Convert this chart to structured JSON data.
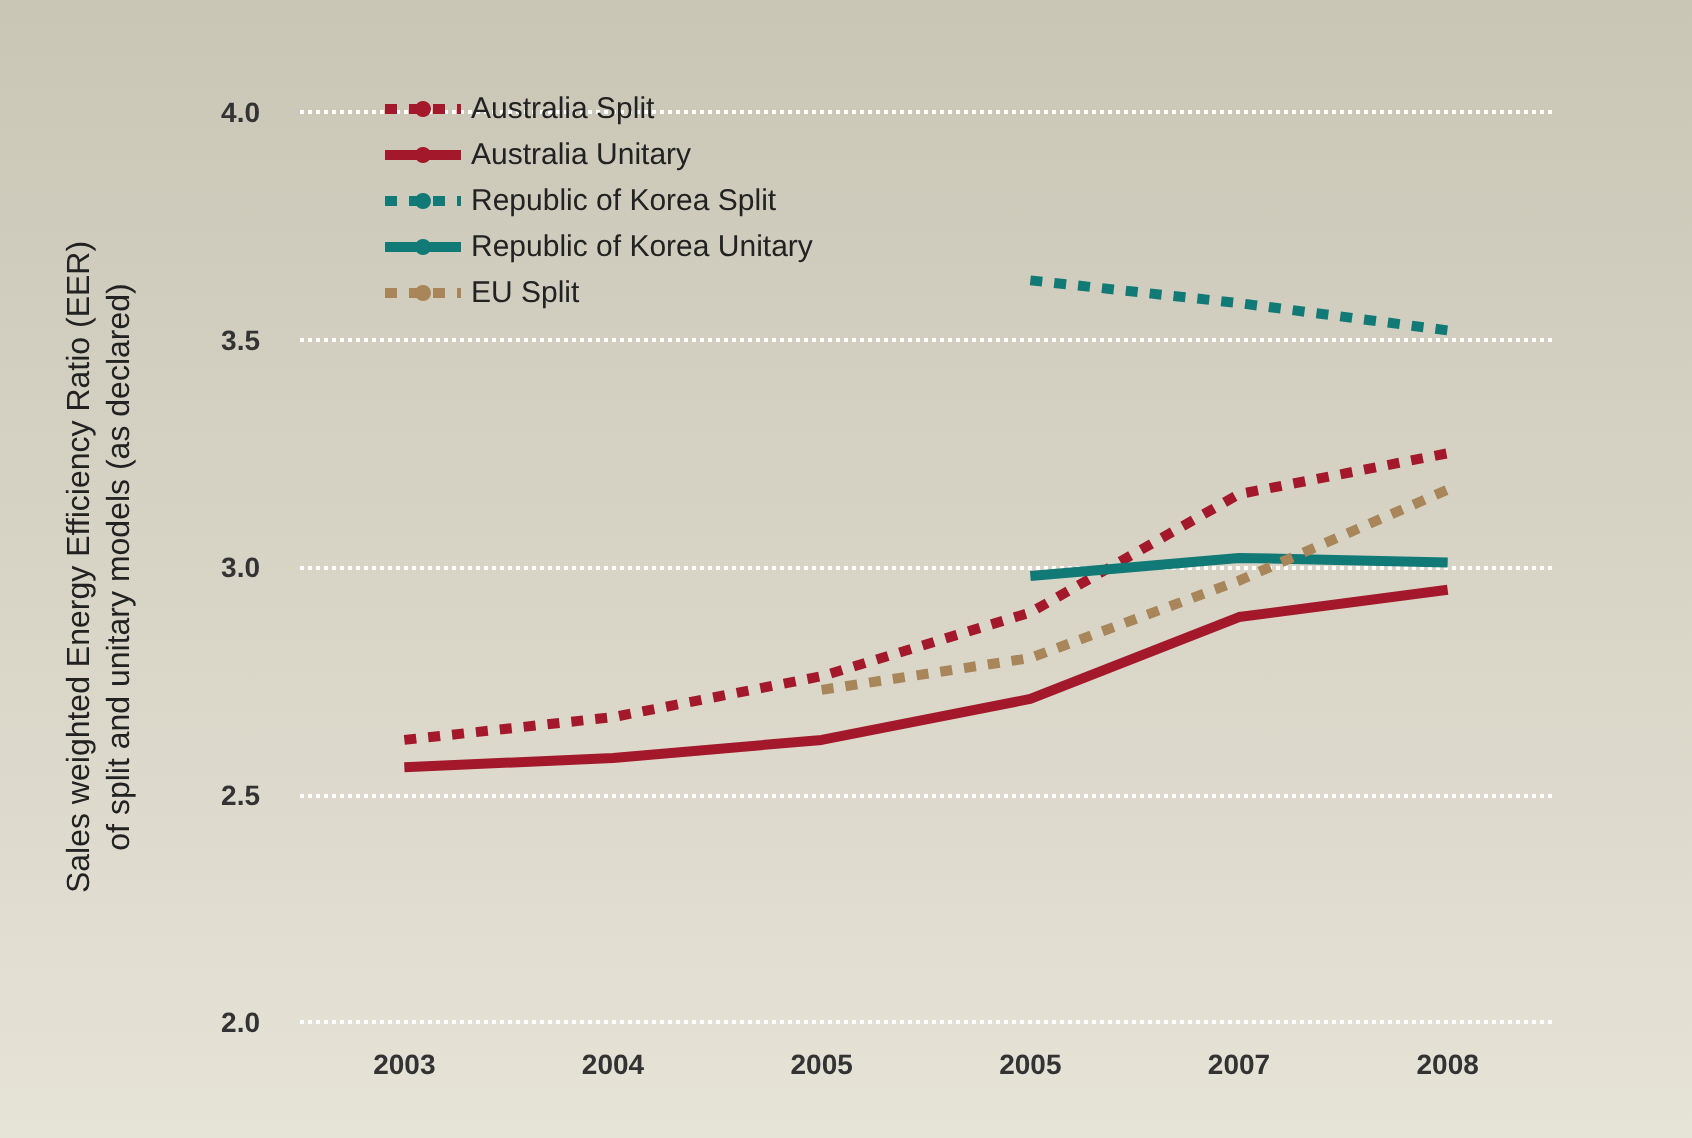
{
  "chart_data": {
    "type": "line",
    "ylabel": "Sales weighted Energy Efficiency Ratio (EER)\nof split and unitary models (as declared)",
    "categories": [
      "2003",
      "2004",
      "2005",
      "2005",
      "2007",
      "2008"
    ],
    "series": [
      {
        "name": "Australia Split",
        "color": "#a3192b",
        "line_style": "dotted",
        "values": [
          2.62,
          2.67,
          2.76,
          2.9,
          3.16,
          3.25
        ]
      },
      {
        "name": "Australia Unitary",
        "color": "#a3192b",
        "line_style": "solid",
        "values": [
          2.56,
          2.58,
          2.62,
          2.71,
          2.89,
          2.95
        ]
      },
      {
        "name": "Republic of Korea Split",
        "color": "#127a76",
        "line_style": "dotted",
        "values": [
          null,
          null,
          null,
          3.63,
          3.58,
          3.52
        ]
      },
      {
        "name": "Republic of Korea Unitary",
        "color": "#127a76",
        "line_style": "solid",
        "values": [
          null,
          null,
          null,
          2.98,
          3.02,
          3.01
        ]
      },
      {
        "name": "EU Split",
        "color": "#a8865a",
        "line_style": "dotted",
        "values": [
          null,
          null,
          2.73,
          2.8,
          2.97,
          3.17
        ]
      }
    ],
    "ylim": [
      2.0,
      4.0
    ],
    "yticks": [
      {
        "value": 2,
        "label": "2.0"
      },
      2.5,
      {
        "value": 3,
        "label": "3.0"
      },
      3.5,
      {
        "value": 4,
        "label": "4.0"
      }
    ],
    "grid": "y",
    "legend": "top left",
    "marker": "none"
  }
}
